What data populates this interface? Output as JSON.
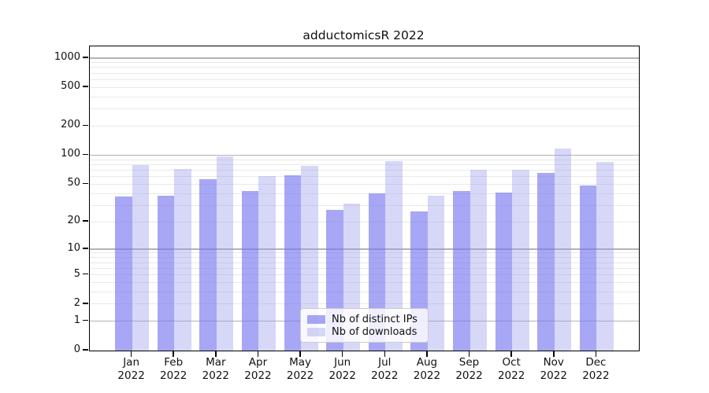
{
  "chart_data": {
    "type": "bar",
    "title": "adductomicsR 2022",
    "xlabel": "",
    "ylabel": "",
    "yscale": "log1p",
    "ylim": [
      0,
      1320
    ],
    "grid": "horizontal-on",
    "legend_position": "bottom-center-inside",
    "categories": [
      "Jan",
      "Feb",
      "Mar",
      "Apr",
      "May",
      "Jun",
      "Jul",
      "Aug",
      "Sep",
      "Oct",
      "Nov",
      "Dec"
    ],
    "year": "2022",
    "series": [
      {
        "name": "Nb of distinct IPs",
        "color": "rgba(120,120,240,0.65)",
        "values": [
          37,
          38,
          56,
          42,
          62,
          27,
          40,
          26,
          42,
          41,
          66,
          48
        ]
      },
      {
        "name": "Nb of downloads",
        "color": "rgba(150,150,235,0.38)",
        "values": [
          79,
          72,
          98,
          61,
          78,
          31,
          86,
          38,
          70,
          70,
          118,
          85
        ]
      }
    ],
    "yticks": {
      "labels": [
        "0",
        "1",
        "2",
        "5",
        "10",
        "20",
        "50",
        "100",
        "200",
        "500",
        "1000"
      ],
      "values": [
        0,
        1,
        2,
        5,
        10,
        20,
        50,
        100,
        200,
        500,
        1000
      ]
    },
    "gridlines": {
      "major": [
        1,
        10,
        100,
        1000
      ],
      "minor": [
        2,
        3,
        4,
        5,
        6,
        7,
        8,
        9,
        20,
        30,
        40,
        50,
        60,
        70,
        80,
        90,
        200,
        300,
        400,
        500,
        600,
        700,
        800,
        900
      ]
    },
    "colors": {
      "grid_major": "#b3b3b3",
      "grid_minor": "#e9e9e9",
      "axis": "#000000"
    }
  }
}
